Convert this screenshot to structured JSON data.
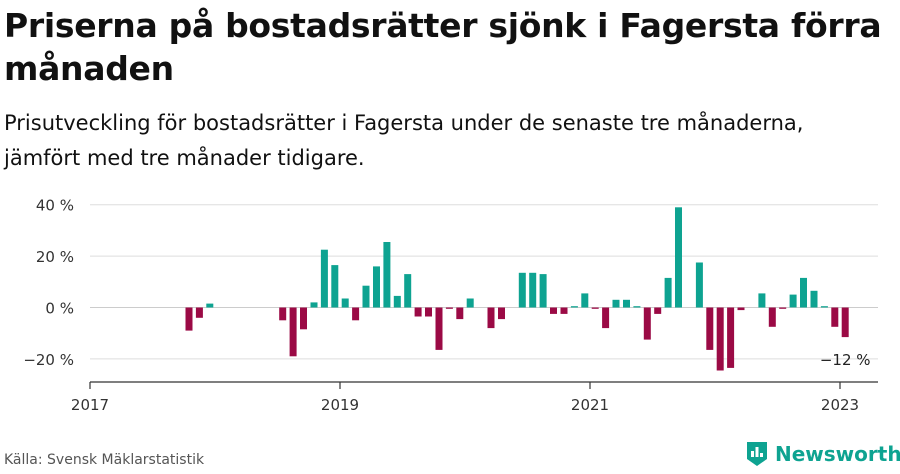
{
  "header": {
    "title": "Priserna på bostadsrätter sjönk i Fagersta förra månaden",
    "subtitle": "Prisutveckling för bostadsrätter i Fagersta under de senaste tre månaderna, jämfört med tre månader tidigare."
  },
  "footer": {
    "source": "Källa: Svensk Mäklarstatistik",
    "brand": "Newsworthy"
  },
  "colors": {
    "positive": "#0ea391",
    "negative": "#9b0a45",
    "grid": "#dddddd",
    "axis": "#333333",
    "brand": "#0ea391"
  },
  "chart_data": {
    "type": "bar",
    "title": "Priserna på bostadsrätter sjönk i Fagersta förra månaden",
    "ylim": [
      -28,
      44
    ],
    "yticks": [
      -20,
      0,
      20,
      40
    ],
    "ytick_labels": [
      "−20 %",
      "0 %",
      "20 %",
      "40 %"
    ],
    "xticks": [
      "2017-01",
      "2019-01",
      "2021-01",
      "2023-01"
    ],
    "xtick_labels": [
      "2017",
      "2019",
      "2021",
      "2023"
    ],
    "x_range": [
      "2017-01",
      "2023-04"
    ],
    "grid": true,
    "legend": "none",
    "annotation": {
      "x": "2023-01",
      "text": "−12 %"
    },
    "series": [
      {
        "points": [
          [
            "2017-10",
            -9
          ],
          [
            "2017-11",
            -4
          ],
          [
            "2017-12",
            1.5
          ],
          [
            "2018-07",
            -5
          ],
          [
            "2018-08",
            -19
          ],
          [
            "2018-09",
            -8.5
          ],
          [
            "2018-10",
            2
          ],
          [
            "2018-11",
            22.5
          ],
          [
            "2018-12",
            16.5
          ],
          [
            "2019-01",
            3.5
          ],
          [
            "2019-02",
            -5
          ],
          [
            "2019-03",
            8.5
          ],
          [
            "2019-04",
            16
          ],
          [
            "2019-05",
            25.5
          ],
          [
            "2019-06",
            4.5
          ],
          [
            "2019-07",
            13
          ],
          [
            "2019-08",
            -3.5
          ],
          [
            "2019-09",
            -3.5
          ],
          [
            "2019-10",
            -16.5
          ],
          [
            "2019-11",
            -0.5
          ],
          [
            "2019-12",
            -4.5
          ],
          [
            "2020-01",
            3.5
          ],
          [
            "2020-03",
            -8
          ],
          [
            "2020-04",
            -4.5
          ],
          [
            "2020-06",
            13.5
          ],
          [
            "2020-07",
            13.5
          ],
          [
            "2020-08",
            13
          ],
          [
            "2020-09",
            -2.5
          ],
          [
            "2020-10",
            -2.5
          ],
          [
            "2020-11",
            0.5
          ],
          [
            "2020-12",
            5.5
          ],
          [
            "2021-01",
            -0.5
          ],
          [
            "2021-02",
            -8
          ],
          [
            "2021-03",
            3
          ],
          [
            "2021-04",
            3
          ],
          [
            "2021-05",
            0.5
          ],
          [
            "2021-06",
            -12.5
          ],
          [
            "2021-07",
            -2.5
          ],
          [
            "2021-08",
            11.5
          ],
          [
            "2021-09",
            39
          ],
          [
            "2021-11",
            17.5
          ],
          [
            "2021-12",
            -16.5
          ],
          [
            "2022-01",
            -24.5
          ],
          [
            "2022-02",
            -23.5
          ],
          [
            "2022-03",
            -1
          ],
          [
            "2022-05",
            5.5
          ],
          [
            "2022-06",
            -7.5
          ],
          [
            "2022-07",
            -0.5
          ],
          [
            "2022-08",
            5
          ],
          [
            "2022-09",
            11.5
          ],
          [
            "2022-10",
            6.5
          ],
          [
            "2022-11",
            0.5
          ],
          [
            "2022-12",
            -7.5
          ],
          [
            "2023-01",
            -11.5
          ]
        ]
      }
    ]
  }
}
